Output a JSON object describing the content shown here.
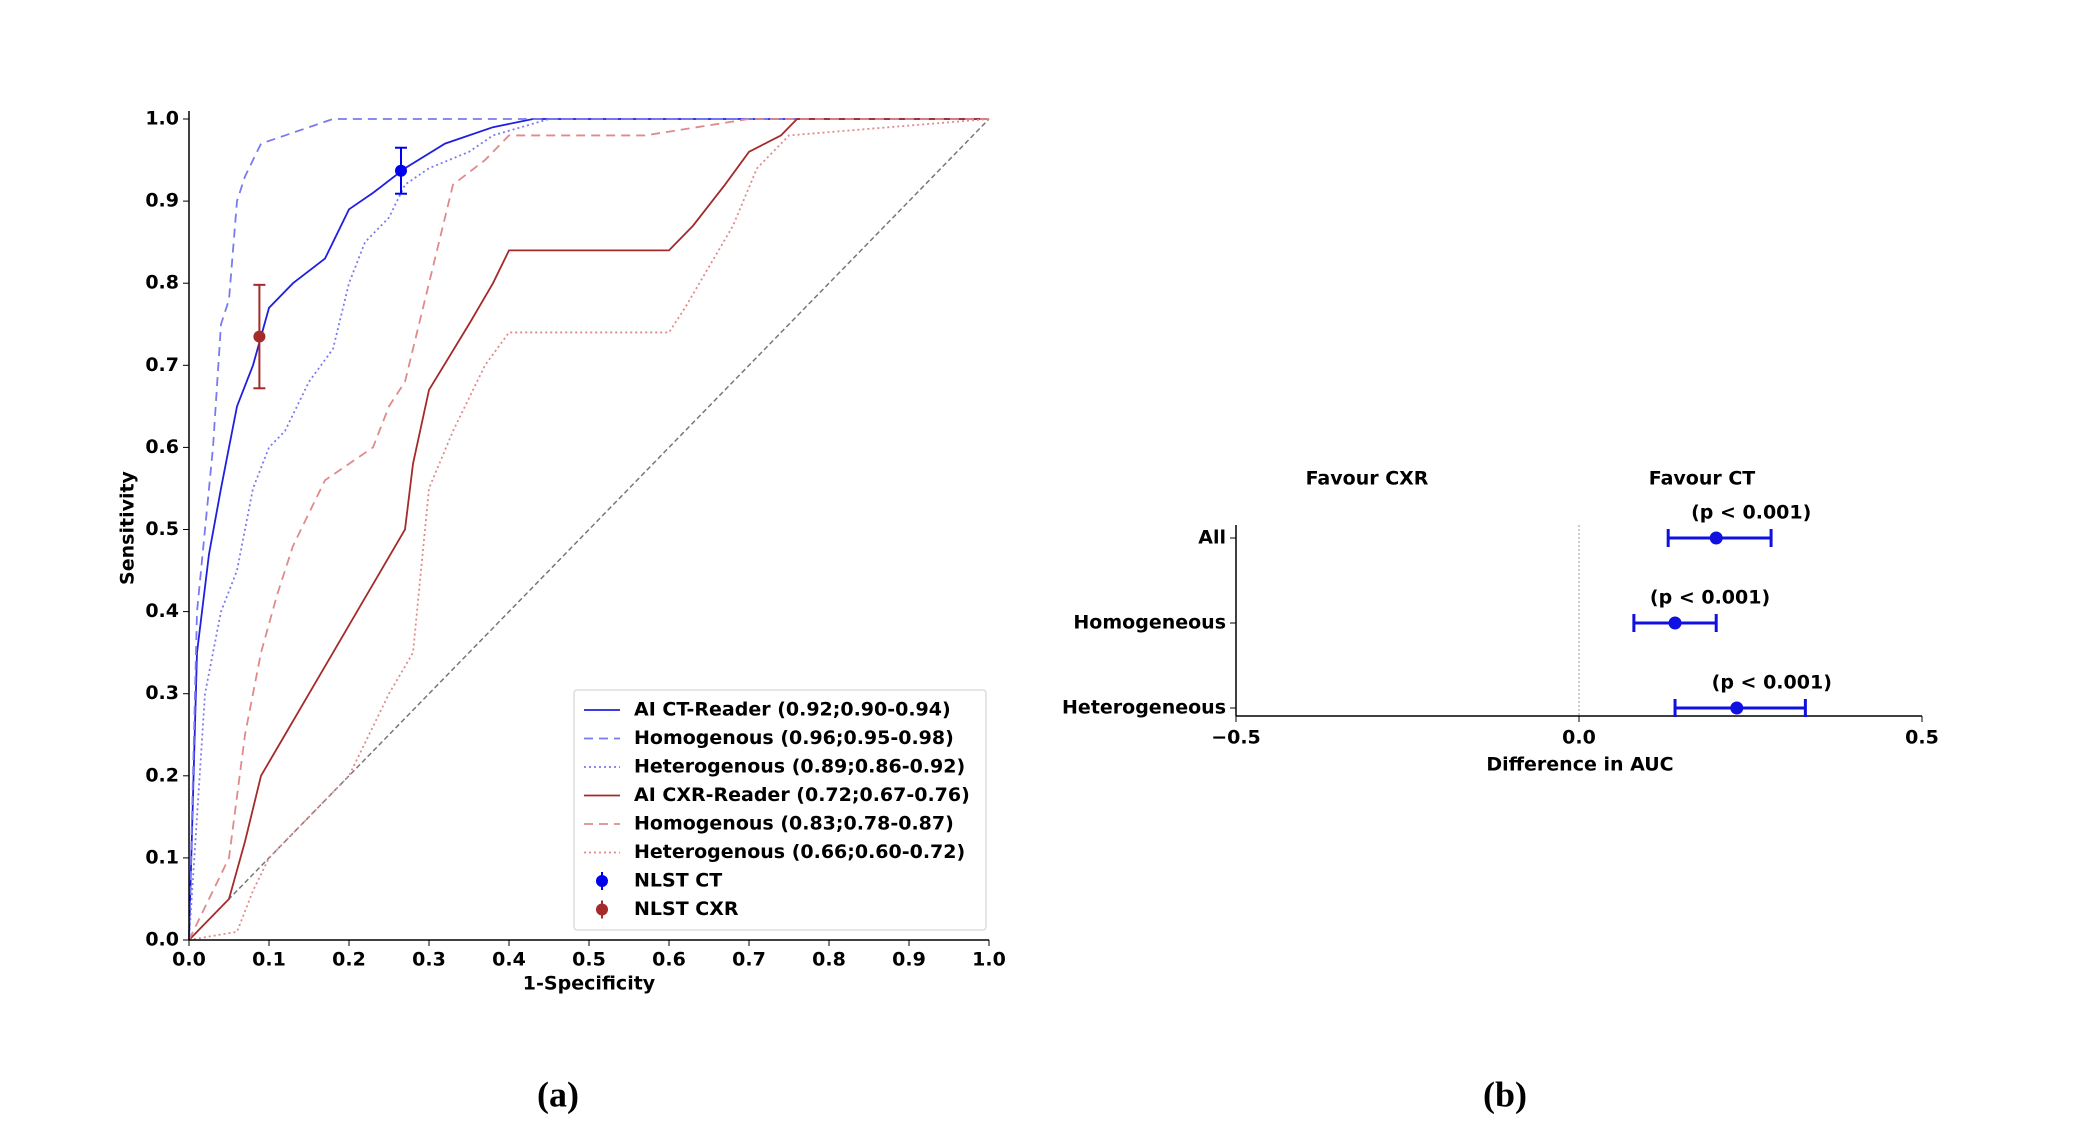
{
  "chart_data": [
    {
      "type": "roc",
      "panel_label": "(a)",
      "x_label": "1-Specificity",
      "y_label": "Sensitivity",
      "xlim": [
        0,
        1
      ],
      "ylim": [
        0,
        1
      ],
      "xticks": [
        {
          "value": 0,
          "label": "0.0"
        },
        0.1,
        0.2,
        0.3,
        0.4,
        0.5,
        0.6,
        0.7,
        0.8,
        0.9,
        {
          "value": 1,
          "label": "1.0"
        }
      ],
      "yticks": [
        {
          "value": 0,
          "label": "0.0"
        },
        0.1,
        0.2,
        0.3,
        0.4,
        0.5,
        0.6,
        0.7,
        0.8,
        0.9,
        {
          "value": 1,
          "label": "1.0"
        }
      ],
      "legend": "lower right",
      "series": [
        {
          "name": "AI CT-Reader (0.92;0.90-0.94)",
          "color": "#1f1fe0",
          "style": "solid",
          "x": [
            0,
            0.01,
            0.025,
            0.04,
            0.06,
            0.08,
            0.1,
            0.13,
            0.17,
            0.2,
            0.23,
            0.27,
            0.32,
            0.38,
            0.43,
            1.0
          ],
          "values": [
            0,
            0.35,
            0.47,
            0.55,
            0.65,
            0.7,
            0.77,
            0.8,
            0.83,
            0.89,
            0.91,
            0.94,
            0.97,
            0.99,
            1.0,
            1.0
          ]
        },
        {
          "name": "Homogenous (0.96;0.95-0.98)",
          "color": "#7a7af0",
          "style": "dashed",
          "x": [
            0,
            0.01,
            0.02,
            0.03,
            0.04,
            0.05,
            0.06,
            0.07,
            0.09,
            0.12,
            0.18,
            0.4,
            1.0
          ],
          "values": [
            0,
            0.4,
            0.5,
            0.6,
            0.75,
            0.78,
            0.9,
            0.93,
            0.97,
            0.98,
            1.0,
            1.0,
            1.0
          ]
        },
        {
          "name": "Heterogenous (0.89;0.86-0.92)",
          "color": "#7a7af0",
          "style": "dotted",
          "x": [
            0,
            0.02,
            0.04,
            0.06,
            0.08,
            0.1,
            0.12,
            0.15,
            0.18,
            0.2,
            0.22,
            0.25,
            0.27,
            0.3,
            0.35,
            0.38,
            0.45,
            1.0
          ],
          "values": [
            0,
            0.3,
            0.4,
            0.45,
            0.55,
            0.6,
            0.62,
            0.68,
            0.72,
            0.8,
            0.85,
            0.88,
            0.92,
            0.94,
            0.96,
            0.98,
            1.0,
            1.0
          ]
        },
        {
          "name": "AI CXR-Reader (0.72;0.67-0.76)",
          "color": "#a52a2a",
          "style": "solid",
          "x": [
            0,
            0.05,
            0.07,
            0.09,
            0.12,
            0.15,
            0.18,
            0.21,
            0.24,
            0.27,
            0.28,
            0.3,
            0.35,
            0.38,
            0.4,
            0.6,
            0.63,
            0.67,
            0.7,
            0.74,
            0.76,
            1.0
          ],
          "values": [
            0,
            0.05,
            0.12,
            0.2,
            0.25,
            0.3,
            0.35,
            0.4,
            0.45,
            0.5,
            0.58,
            0.67,
            0.75,
            0.8,
            0.84,
            0.84,
            0.87,
            0.92,
            0.96,
            0.98,
            1.0,
            1.0
          ]
        },
        {
          "name": "Homogenous (0.83;0.78-0.87)",
          "color": "#e08a8a",
          "style": "dashed",
          "x": [
            0,
            0.05,
            0.07,
            0.09,
            0.11,
            0.13,
            0.15,
            0.17,
            0.2,
            0.23,
            0.25,
            0.27,
            0.28,
            0.3,
            0.33,
            0.37,
            0.4,
            0.57,
            0.7,
            1.0
          ],
          "values": [
            0,
            0.1,
            0.25,
            0.35,
            0.42,
            0.48,
            0.52,
            0.56,
            0.58,
            0.6,
            0.65,
            0.68,
            0.72,
            0.8,
            0.92,
            0.95,
            0.98,
            0.98,
            1.0,
            1.0
          ]
        },
        {
          "name": "Heterogenous (0.66;0.60-0.72)",
          "color": "#e08a8a",
          "style": "dotted",
          "x": [
            0,
            0.06,
            0.08,
            0.1,
            0.15,
            0.2,
            0.25,
            0.28,
            0.3,
            0.33,
            0.37,
            0.4,
            0.6,
            0.62,
            0.65,
            0.68,
            0.71,
            0.75,
            1.0
          ],
          "values": [
            0,
            0.01,
            0.06,
            0.1,
            0.15,
            0.2,
            0.3,
            0.35,
            0.55,
            0.62,
            0.7,
            0.74,
            0.74,
            0.77,
            0.82,
            0.87,
            0.94,
            0.98,
            1.0
          ]
        }
      ],
      "points": [
        {
          "name": "NLST CT",
          "color": "#0000ee",
          "x": 0.265,
          "y": 0.937,
          "error": 0.028
        },
        {
          "name": "NLST CXR",
          "color": "#a52a2a",
          "x": 0.088,
          "y": 0.735,
          "error": 0.063
        }
      ]
    },
    {
      "type": "forest",
      "panel_label": "(b)",
      "x_label": "Difference in AUC",
      "left_note": "Favour CXR",
      "right_note": "Favour CT",
      "xlim": [
        -0.5,
        0.5
      ],
      "xticks": [
        {
          "value": -0.5,
          "label": "−0.5"
        },
        {
          "value": 0,
          "label": "0.0"
        },
        0.5
      ],
      "color": "#1010e0",
      "left_color": "#a52a2a",
      "right_color": "#1010e0",
      "categories": [
        "All",
        "Homogeneous",
        "Heterogeneous"
      ],
      "values": [
        0.2,
        0.14,
        0.23
      ],
      "ci_low": [
        0.13,
        0.08,
        0.14
      ],
      "ci_high": [
        0.28,
        0.2,
        0.33
      ],
      "annotations": [
        "(p < 0.001)",
        "(p < 0.001)",
        "(p < 0.001)"
      ]
    }
  ]
}
